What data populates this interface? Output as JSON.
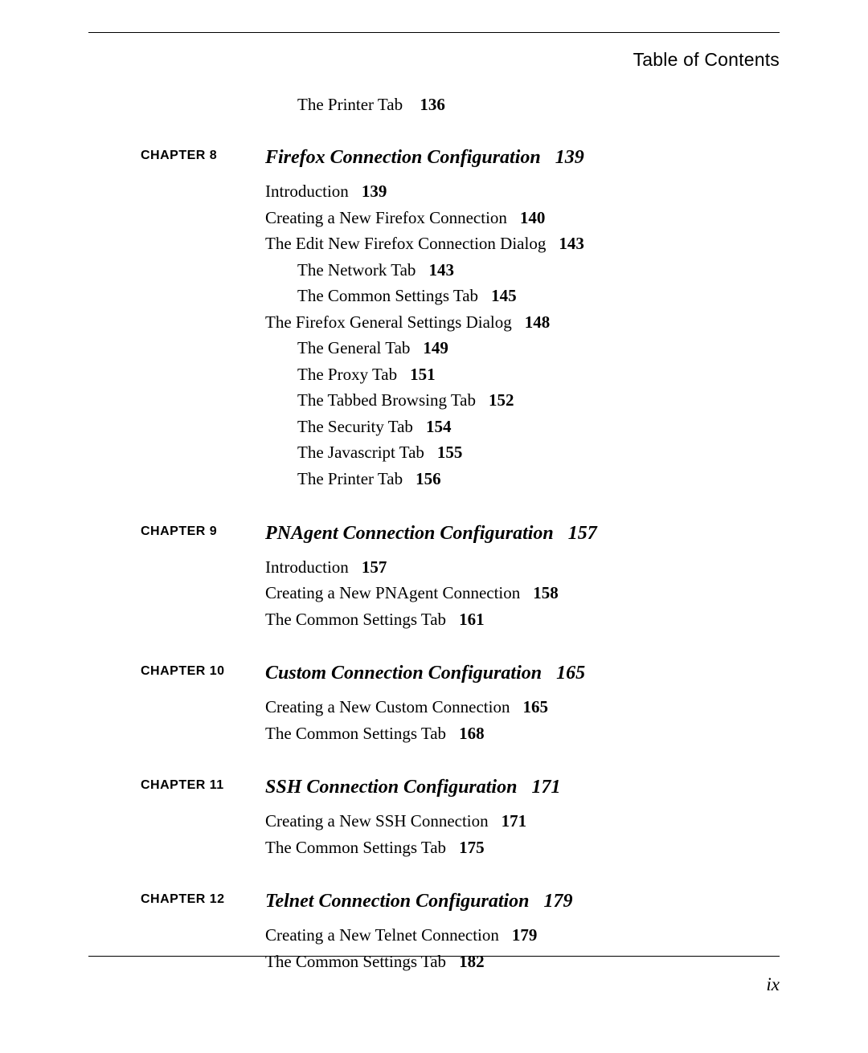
{
  "header": "Table of Contents",
  "leading_entry": {
    "text": "The Printer Tab",
    "page": "136"
  },
  "chapters": [
    {
      "label": "CHAPTER 8",
      "title": "Firefox Connection Configuration",
      "title_page": "139",
      "entries": [
        {
          "text": "Introduction",
          "page": "139",
          "indent": 0
        },
        {
          "text": "Creating a New Firefox Connection",
          "page": "140",
          "indent": 0
        },
        {
          "text": "The Edit New Firefox Connection Dialog",
          "page": "143",
          "indent": 0
        },
        {
          "text": "The Network Tab",
          "page": "143",
          "indent": 1
        },
        {
          "text": "The Common Settings Tab",
          "page": "145",
          "indent": 1
        },
        {
          "text": "The Firefox General Settings Dialog",
          "page": "148",
          "indent": 0
        },
        {
          "text": "The General Tab",
          "page": "149",
          "indent": 1
        },
        {
          "text": "The Proxy Tab",
          "page": "151",
          "indent": 1
        },
        {
          "text": "The Tabbed Browsing Tab",
          "page": "152",
          "indent": 1
        },
        {
          "text": "The Security Tab",
          "page": "154",
          "indent": 1
        },
        {
          "text": "The Javascript Tab",
          "page": "155",
          "indent": 1
        },
        {
          "text": "The Printer Tab",
          "page": "156",
          "indent": 1
        }
      ]
    },
    {
      "label": "CHAPTER 9",
      "title": "PNAgent Connection Configuration",
      "title_page": "157",
      "entries": [
        {
          "text": "Introduction",
          "page": "157",
          "indent": 0
        },
        {
          "text": "Creating a New PNAgent Connection",
          "page": "158",
          "indent": 0
        },
        {
          "text": "The Common Settings Tab",
          "page": "161",
          "indent": 0
        }
      ]
    },
    {
      "label": "CHAPTER 10",
      "title": "Custom Connection Configuration",
      "title_page": "165",
      "entries": [
        {
          "text": "Creating a New Custom Connection",
          "page": "165",
          "indent": 0
        },
        {
          "text": "The Common Settings Tab",
          "page": "168",
          "indent": 0
        }
      ]
    },
    {
      "label": "CHAPTER 11",
      "title": "SSH Connection Configuration",
      "title_page": "171",
      "entries": [
        {
          "text": "Creating a New SSH Connection",
          "page": "171",
          "indent": 0
        },
        {
          "text": "The Common Settings Tab",
          "page": "175",
          "indent": 0
        }
      ]
    },
    {
      "label": "CHAPTER 12",
      "title": "Telnet Connection Configuration",
      "title_page": "179",
      "entries": [
        {
          "text": "Creating a New Telnet Connection",
          "page": "179",
          "indent": 0
        },
        {
          "text": "The Common Settings Tab",
          "page": "182",
          "indent": 0
        }
      ]
    }
  ],
  "page_footer": "ix"
}
